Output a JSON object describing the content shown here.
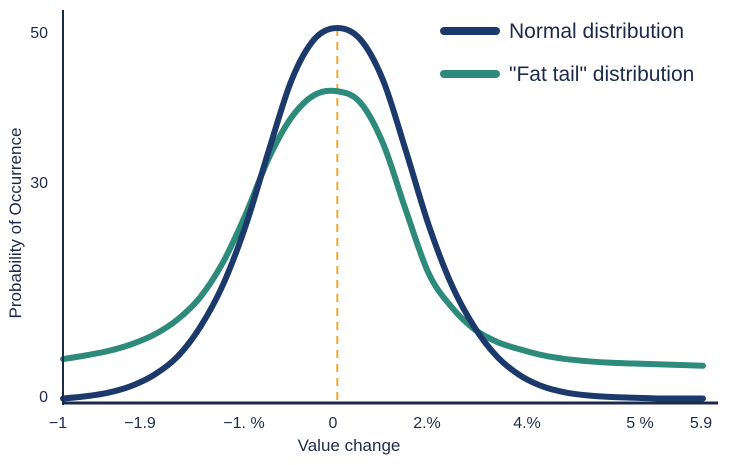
{
  "chart_data": {
    "type": "line",
    "title": "",
    "xlabel": "Value change",
    "ylabel": "Probability of Occurrence",
    "ylim": [
      0,
      50
    ],
    "x_tick_labels": [
      "−1",
      "−1.9",
      "−1. %",
      "0",
      "2.%",
      "4.%",
      "5 %",
      "5.9"
    ],
    "y_tick_labels": [
      "0",
      "30",
      "50"
    ],
    "y_tick_values": [
      0,
      30,
      50
    ],
    "center_x_index": 3,
    "series": [
      {
        "name": "Normal distribution",
        "color": "#1b3a6b",
        "x": [
          0,
          0.25,
          0.5,
          0.75,
          1,
          1.25,
          1.5,
          1.75,
          2,
          2.25,
          2.5,
          2.75,
          3,
          3.25,
          3.5,
          3.75,
          4,
          4.25,
          4.5,
          4.75,
          5,
          5.25,
          5.5,
          5.75,
          6,
          6.25,
          6.5,
          6.75,
          7
        ],
        "values": [
          0.2,
          0.5,
          1.0,
          1.9,
          3.4,
          5.8,
          9.8,
          15.5,
          23.5,
          33.5,
          43.0,
          48.5,
          50.0,
          48.5,
          43.0,
          33.5,
          23.5,
          15.5,
          9.8,
          5.8,
          3.3,
          1.8,
          1.0,
          0.6,
          0.4,
          0.3,
          0.2,
          0.2,
          0.2
        ]
      },
      {
        "name": "\"Fat tail\" distribution",
        "color": "#2e8b7c",
        "x": [
          0,
          0.25,
          0.5,
          0.75,
          1,
          1.25,
          1.5,
          1.75,
          2,
          2.25,
          2.5,
          2.75,
          3,
          3.25,
          3.5,
          3.75,
          4,
          4.25,
          4.5,
          4.75,
          5,
          5.25,
          5.5,
          5.75,
          6,
          6.25,
          6.5,
          6.75,
          7
        ],
        "values": [
          5.5,
          6.0,
          6.6,
          7.5,
          8.8,
          10.8,
          13.8,
          18.5,
          25.0,
          32.5,
          38.0,
          41.0,
          41.5,
          40.0,
          34.5,
          25.5,
          17.0,
          12.5,
          9.5,
          7.8,
          6.8,
          6.0,
          5.5,
          5.2,
          5.0,
          4.9,
          4.8,
          4.7,
          4.6
        ]
      }
    ],
    "center_line_color": "#f0a73a",
    "legend_position": "top-right"
  }
}
